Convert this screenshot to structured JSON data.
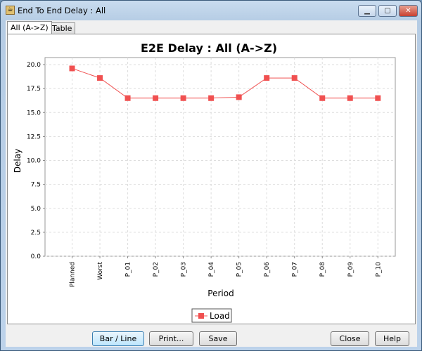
{
  "window": {
    "title": "End To End Delay : All"
  },
  "tabs": [
    {
      "label": "All (A->Z)",
      "selected": true
    },
    {
      "label": "Table",
      "selected": false
    }
  ],
  "buttons": {
    "bar_line": "Bar / Line",
    "print": "Print...",
    "save": "Save",
    "close": "Close",
    "help": "Help"
  },
  "chart_data": {
    "type": "line",
    "title": "E2E Delay : All (A->Z)",
    "xlabel": "Period",
    "ylabel": "Delay",
    "categories": [
      "Planned",
      "Worst",
      "P_01",
      "P_02",
      "P_03",
      "P_04",
      "P_05",
      "P_06",
      "P_07",
      "P_08",
      "P_09",
      "P_10"
    ],
    "series": [
      {
        "name": "Load",
        "values": [
          19.6,
          18.6,
          16.5,
          16.5,
          16.5,
          16.5,
          16.6,
          18.6,
          18.6,
          16.5,
          16.5,
          16.5
        ],
        "color": "#f05050"
      }
    ],
    "ylim": [
      0,
      20
    ],
    "yticks": [
      "0.0",
      "2.5",
      "5.0",
      "7.5",
      "10.0",
      "12.5",
      "15.0",
      "17.5",
      "20.0"
    ],
    "grid": true,
    "legend": "bottom"
  }
}
